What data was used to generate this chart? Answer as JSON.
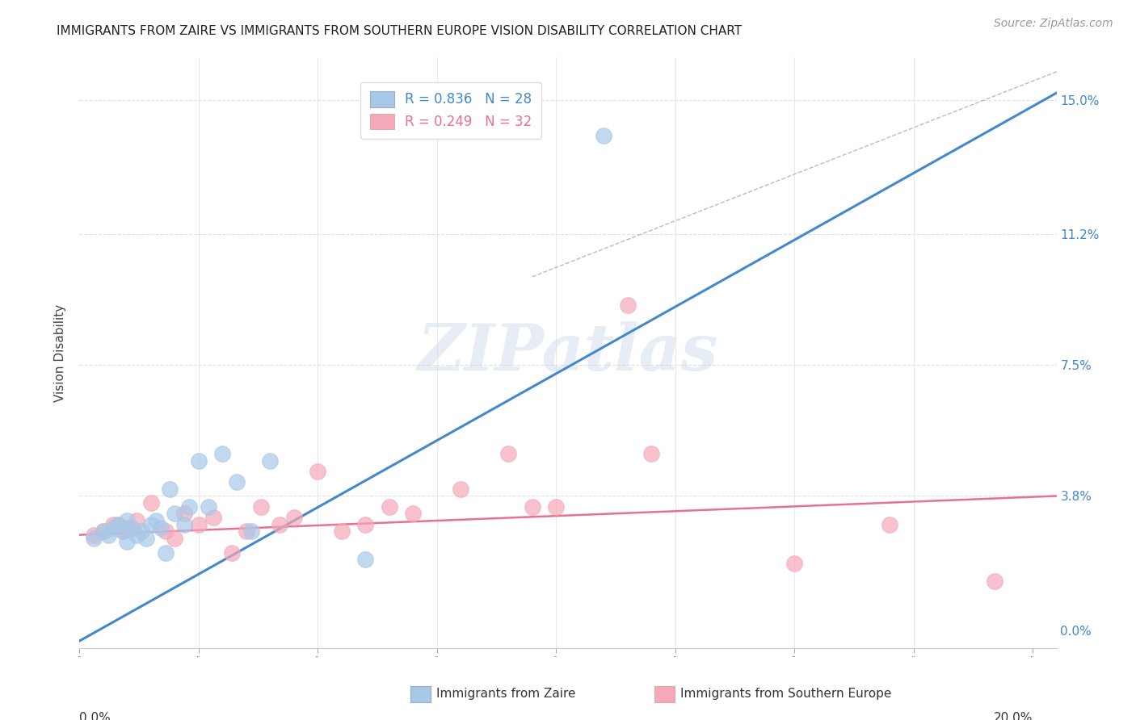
{
  "title": "IMMIGRANTS FROM ZAIRE VS IMMIGRANTS FROM SOUTHERN EUROPE VISION DISABILITY CORRELATION CHART",
  "source": "Source: ZipAtlas.com",
  "ylabel": "Vision Disability",
  "ytick_labels": [
    "0.0%",
    "3.8%",
    "7.5%",
    "11.2%",
    "15.0%"
  ],
  "ytick_values": [
    0.0,
    0.038,
    0.075,
    0.112,
    0.15
  ],
  "xlim": [
    0.0,
    0.205
  ],
  "ylim": [
    -0.005,
    0.162
  ],
  "legend_blue_R": "R = 0.836",
  "legend_blue_N": "N = 28",
  "legend_pink_R": "R = 0.249",
  "legend_pink_N": "N = 32",
  "blue_scatter_color": "#A8C8E8",
  "pink_scatter_color": "#F4A8B8",
  "blue_line_color": "#4488CC",
  "pink_line_color": "#E87090",
  "dashed_line_color": "#BBBBBB",
  "watermark_color": "#C8D8E8",
  "background_color": "#FFFFFF",
  "grid_color": "#E0E0E0",
  "blue_scatter_x": [
    0.003,
    0.005,
    0.006,
    0.007,
    0.008,
    0.009,
    0.01,
    0.01,
    0.011,
    0.012,
    0.013,
    0.014,
    0.015,
    0.016,
    0.017,
    0.018,
    0.019,
    0.02,
    0.022,
    0.023,
    0.025,
    0.027,
    0.03,
    0.033,
    0.036,
    0.04,
    0.06,
    0.11
  ],
  "blue_scatter_y": [
    0.026,
    0.028,
    0.027,
    0.029,
    0.03,
    0.028,
    0.025,
    0.031,
    0.029,
    0.027,
    0.028,
    0.026,
    0.03,
    0.031,
    0.029,
    0.022,
    0.04,
    0.033,
    0.03,
    0.035,
    0.048,
    0.035,
    0.05,
    0.042,
    0.028,
    0.048,
    0.02,
    0.14
  ],
  "pink_scatter_x": [
    0.003,
    0.005,
    0.007,
    0.008,
    0.009,
    0.01,
    0.012,
    0.015,
    0.018,
    0.02,
    0.022,
    0.025,
    0.028,
    0.032,
    0.035,
    0.038,
    0.042,
    0.045,
    0.05,
    0.055,
    0.06,
    0.065,
    0.07,
    0.08,
    0.09,
    0.095,
    0.1,
    0.115,
    0.12,
    0.15,
    0.17,
    0.192
  ],
  "pink_scatter_y": [
    0.027,
    0.028,
    0.03,
    0.03,
    0.028,
    0.029,
    0.031,
    0.036,
    0.028,
    0.026,
    0.033,
    0.03,
    0.032,
    0.022,
    0.028,
    0.035,
    0.03,
    0.032,
    0.045,
    0.028,
    0.03,
    0.035,
    0.033,
    0.04,
    0.05,
    0.035,
    0.035,
    0.092,
    0.05,
    0.019,
    0.03,
    0.014
  ],
  "blue_line_x0": 0.0,
  "blue_line_x1": 0.205,
  "blue_line_y0": -0.003,
  "blue_line_y1": 0.152,
  "pink_line_x0": 0.0,
  "pink_line_x1": 0.205,
  "pink_line_y0": 0.027,
  "pink_line_y1": 0.038,
  "dash_line_x0": 0.095,
  "dash_line_x1": 0.205,
  "dash_line_y0": 0.1,
  "dash_line_y1": 0.158,
  "xtick_values": [
    0.0,
    0.025,
    0.05,
    0.075,
    0.1,
    0.125,
    0.15,
    0.175,
    0.2
  ],
  "title_fontsize": 11,
  "axis_label_fontsize": 11,
  "tick_label_fontsize": 11,
  "legend_fontsize": 12,
  "source_fontsize": 10
}
